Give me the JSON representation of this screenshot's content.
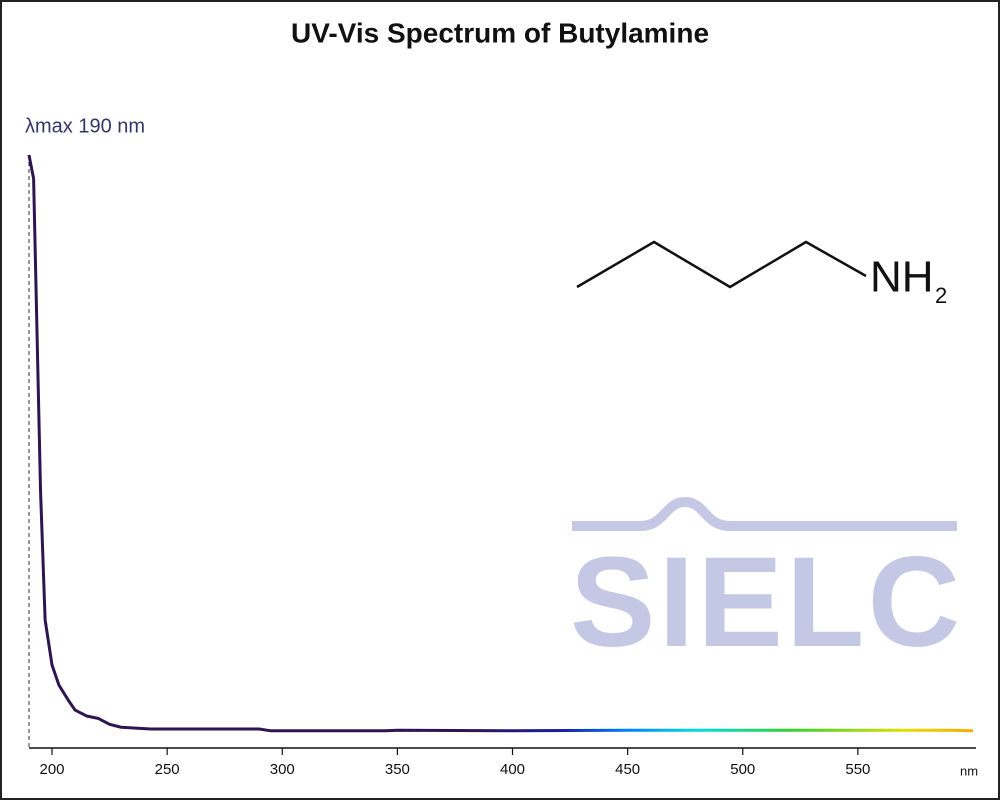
{
  "chart_data": {
    "type": "line",
    "title": "UV-Vis Spectrum of Butylamine",
    "annotation": {
      "text": "λmax  190 nm",
      "x": 190
    },
    "xlabel": "nm",
    "x": [
      190,
      192,
      195,
      197,
      200,
      203,
      207,
      210,
      215,
      220,
      225,
      230,
      243,
      250,
      290,
      295,
      345,
      350,
      400,
      450,
      500,
      550,
      590,
      600
    ],
    "series": [
      {
        "name": "Butylamine",
        "color": "#2d1650",
        "values": [
          1.0,
          0.96,
          0.435,
          0.216,
          0.14,
          0.106,
          0.081,
          0.064,
          0.054,
          0.05,
          0.04,
          0.035,
          0.032,
          0.032,
          0.032,
          0.029,
          0.029,
          0.03,
          0.029,
          0.03,
          0.03,
          0.03,
          0.03,
          0.029
        ]
      }
    ],
    "gradient": [
      {
        "x": 190,
        "color": "#2d1650"
      },
      {
        "x": 380,
        "color": "#2d1650"
      },
      {
        "x": 420,
        "color": "#1a1aa0"
      },
      {
        "x": 450,
        "color": "#0080ff"
      },
      {
        "x": 480,
        "color": "#00dede"
      },
      {
        "x": 520,
        "color": "#30d030"
      },
      {
        "x": 570,
        "color": "#e0e000"
      },
      {
        "x": 600,
        "color": "#ffa800"
      }
    ],
    "xlim": [
      190,
      600
    ],
    "ylim": [
      0,
      1
    ],
    "xticks": [
      200,
      250,
      300,
      350,
      400,
      450,
      500,
      550
    ],
    "molecule": {
      "group": "NH",
      "subscript": "2"
    },
    "watermark": "SIELC"
  }
}
